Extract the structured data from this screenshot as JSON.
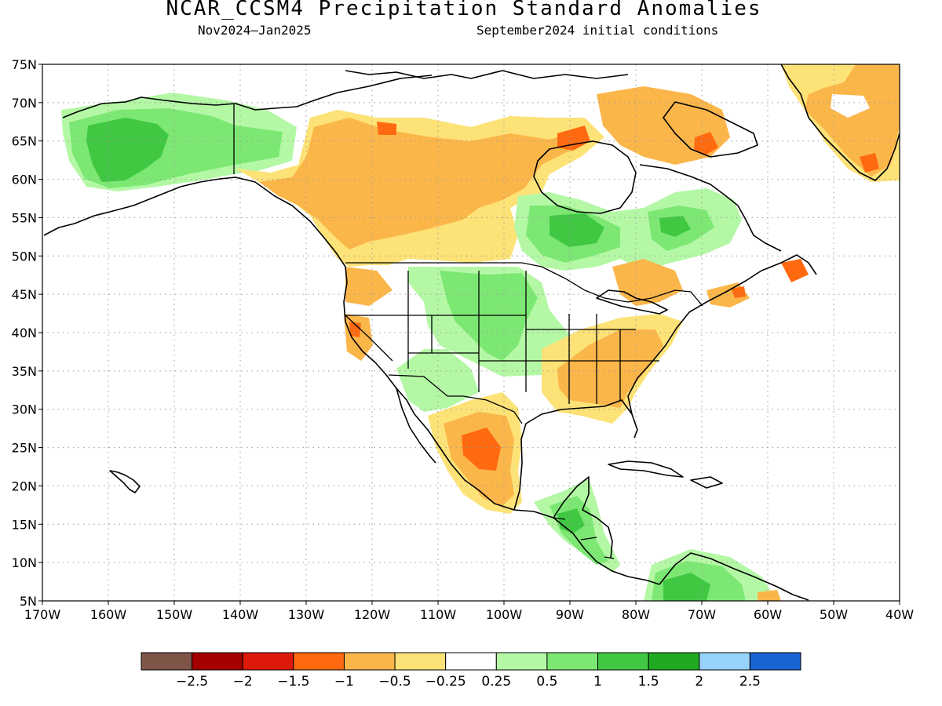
{
  "title": "NCAR_CCSM4 Precipitation Standard Anomalies",
  "subtitle_left": "Nov2024—Jan2025",
  "subtitle_right": "September2024 initial conditions",
  "map": {
    "region": "North America",
    "lon_range": [
      -170,
      -40
    ],
    "lat_range": [
      5,
      75
    ],
    "grid": "dotted",
    "lat_labels": [
      "75N",
      "70N",
      "65N",
      "60N",
      "55N",
      "50N",
      "45N",
      "40N",
      "35N",
      "30N",
      "25N",
      "20N",
      "15N",
      "10N",
      "5N"
    ],
    "lon_labels": [
      "170W",
      "160W",
      "150W",
      "140W",
      "130W",
      "120W",
      "110W",
      "100W",
      "90W",
      "80W",
      "70W",
      "60W",
      "50W",
      "40W"
    ]
  },
  "colorbar": {
    "colors": [
      "#7f5548",
      "#a40000",
      "#dd1a0a",
      "#ff6a10",
      "#fbb64a",
      "#fde277",
      "#ffffff",
      "#b4f8a6",
      "#7ce873",
      "#41c843",
      "#21aa21",
      "#96d2fa",
      "#1a64d2"
    ],
    "labels": [
      "−2.5",
      "−2",
      "−1.5",
      "−1",
      "−0.5",
      "−0.25",
      "0.25",
      "0.5",
      "1",
      "1.5",
      "2",
      "2.5"
    ]
  },
  "anomaly_regions": [
    {
      "name": "Alaska",
      "level": "0.5 to 1.5"
    },
    {
      "name": "Western Canada",
      "level": "-1 to -0.25"
    },
    {
      "name": "Southern Mexico",
      "level": "-1.5 to -0.25"
    },
    {
      "name": "Southeastern US",
      "level": "-1 to -0.25"
    },
    {
      "name": "Northern Plains",
      "level": "0.25 to 1"
    },
    {
      "name": "Ontario / Quebec",
      "level": "0.5 to 1.5"
    },
    {
      "name": "Central America",
      "level": "0.5 to 1.5"
    },
    {
      "name": "Northern South America",
      "level": "0.5 to 1.5"
    },
    {
      "name": "Greenland",
      "level": "-1.5 to -0.25"
    },
    {
      "name": "Canadian Arctic",
      "level": "-1.5 to -0.25"
    },
    {
      "name": "Newfoundland",
      "level": "-1.5"
    }
  ]
}
